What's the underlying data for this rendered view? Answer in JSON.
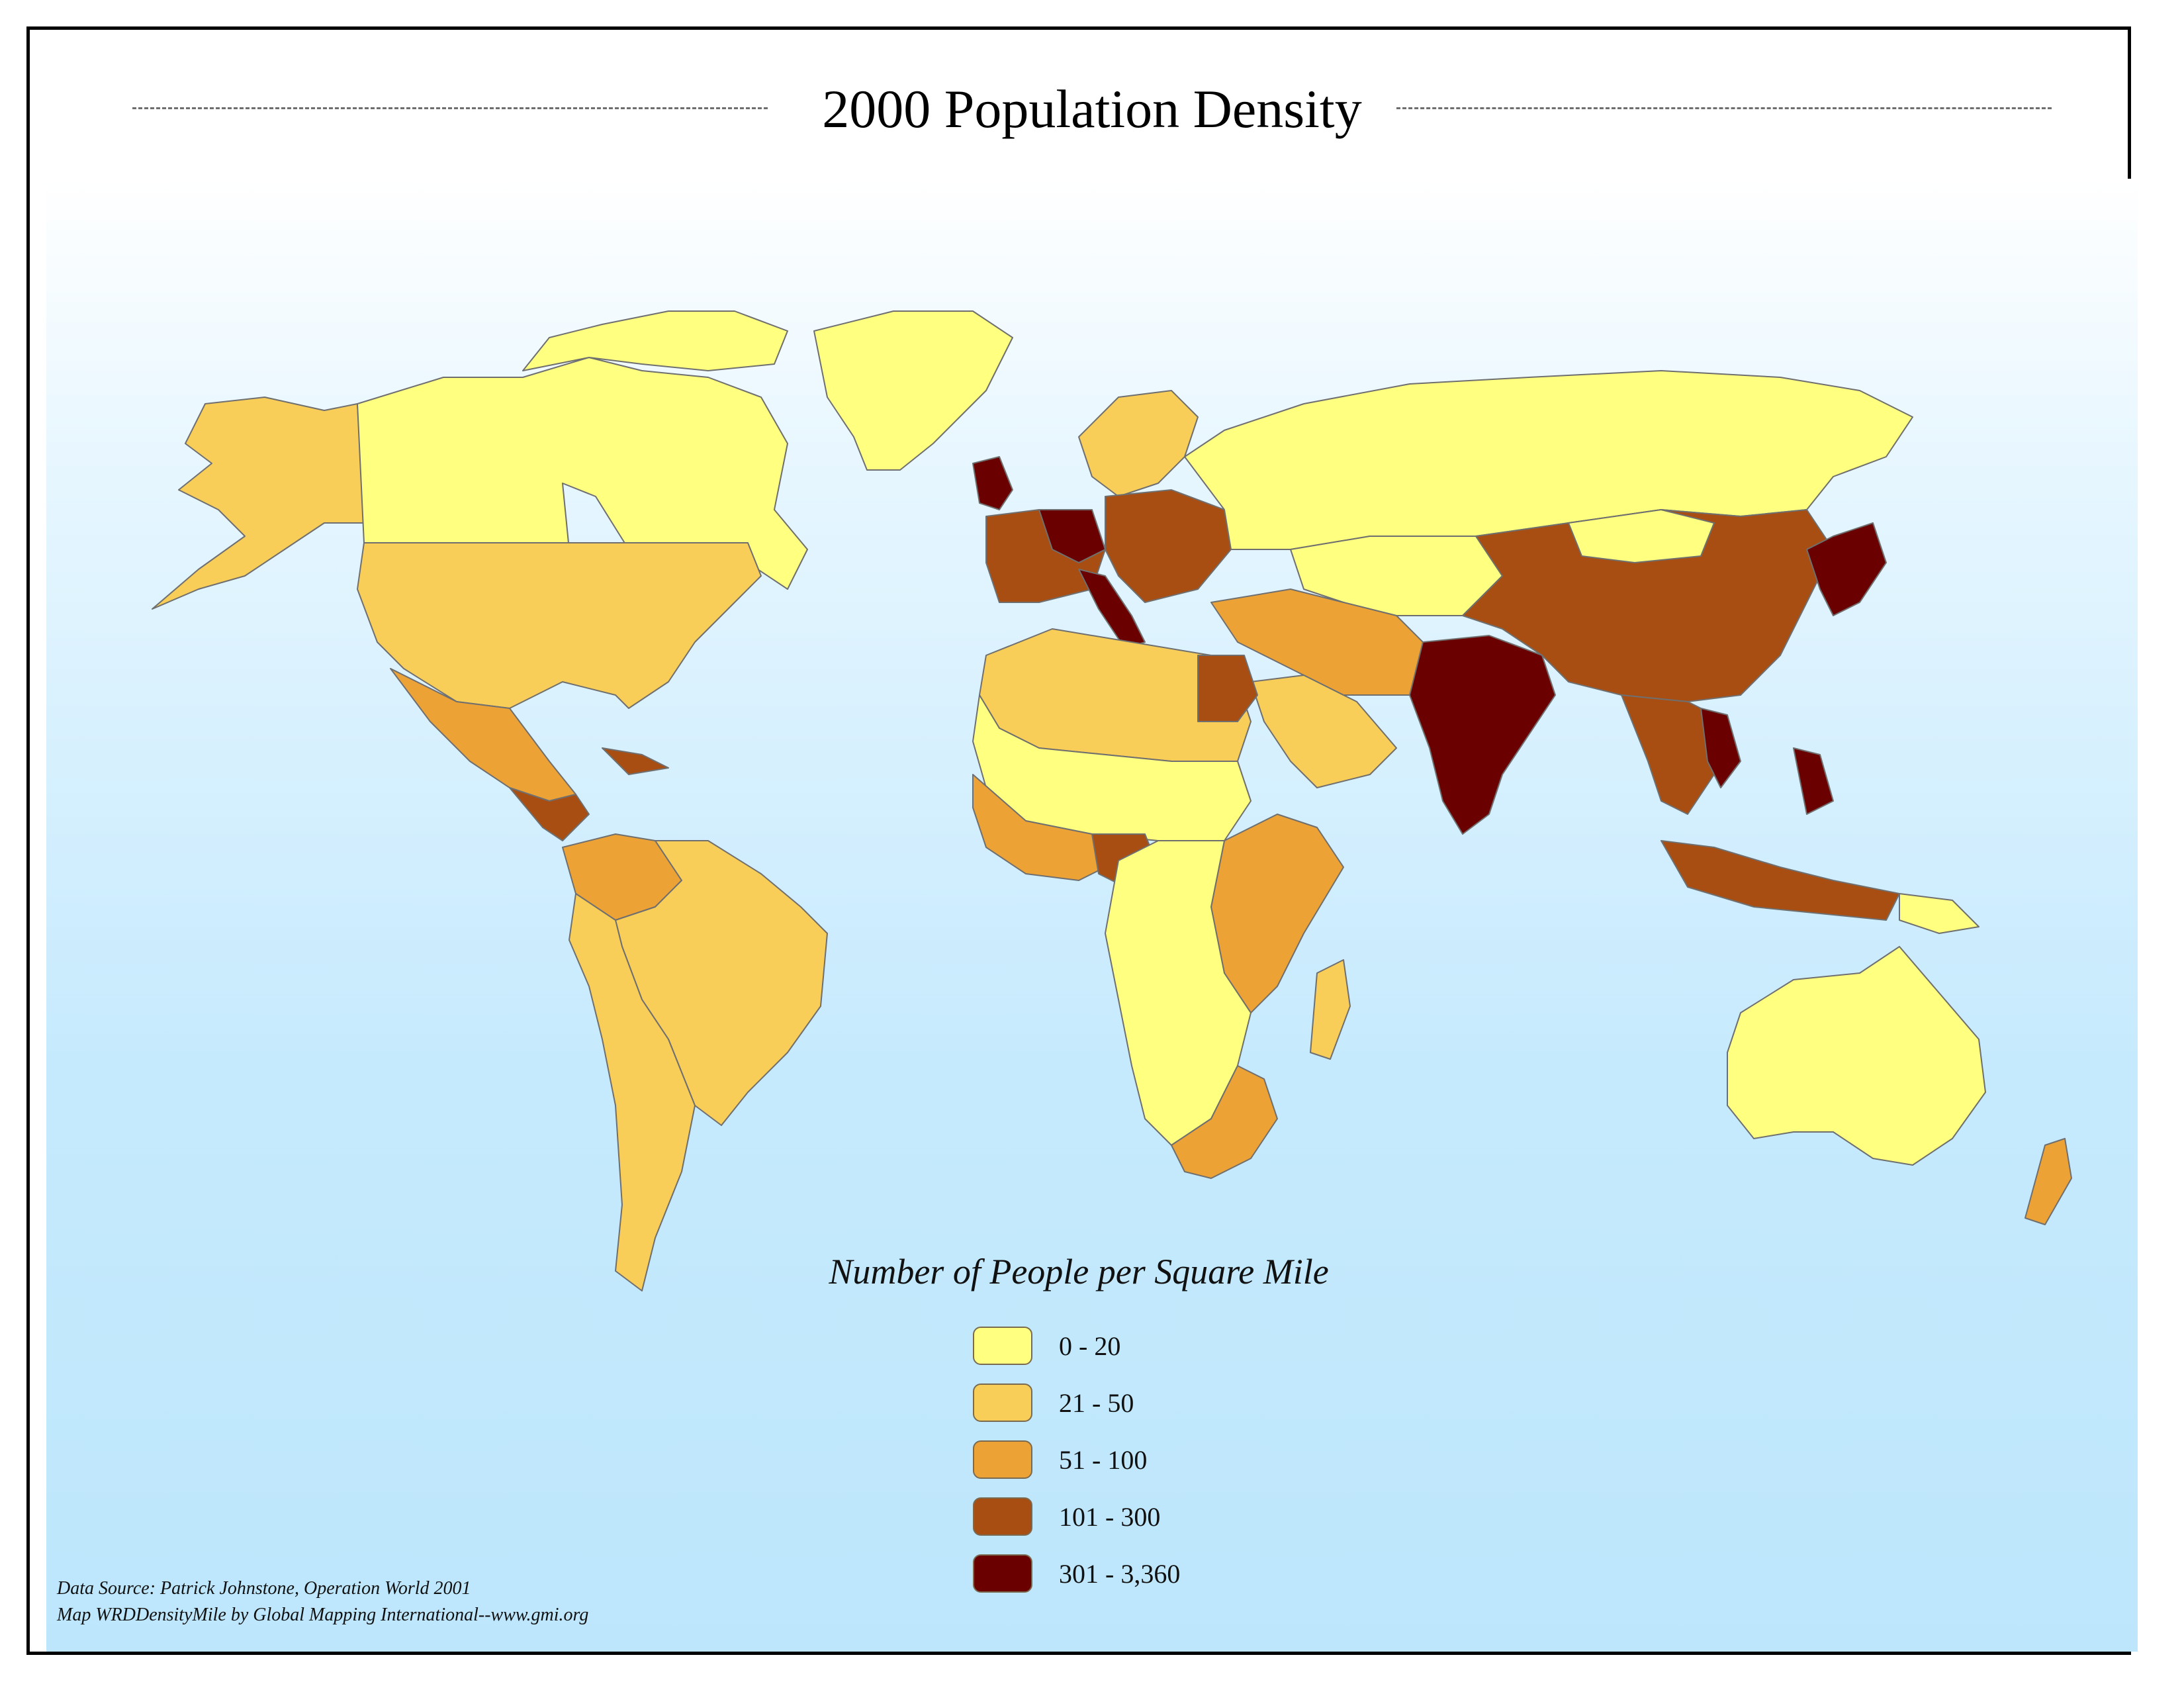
{
  "title": "2000 Population Density",
  "legend": {
    "title": "Number of People per Square Mile",
    "items": [
      {
        "label": "0 - 20",
        "color": "#ffff80"
      },
      {
        "label": "21 - 50",
        "color": "#f8cd58"
      },
      {
        "label": "51 - 100",
        "color": "#eda235"
      },
      {
        "label": "101 - 300",
        "color": "#a84e12"
      },
      {
        "label": "301 - 3,360",
        "color": "#6a0000"
      }
    ]
  },
  "credits": {
    "source": "Data Source:  Patrick Johnstone, Operation World 2001",
    "map": "Map WRDDensityMile by Global Mapping International--www.gmi.org"
  }
}
